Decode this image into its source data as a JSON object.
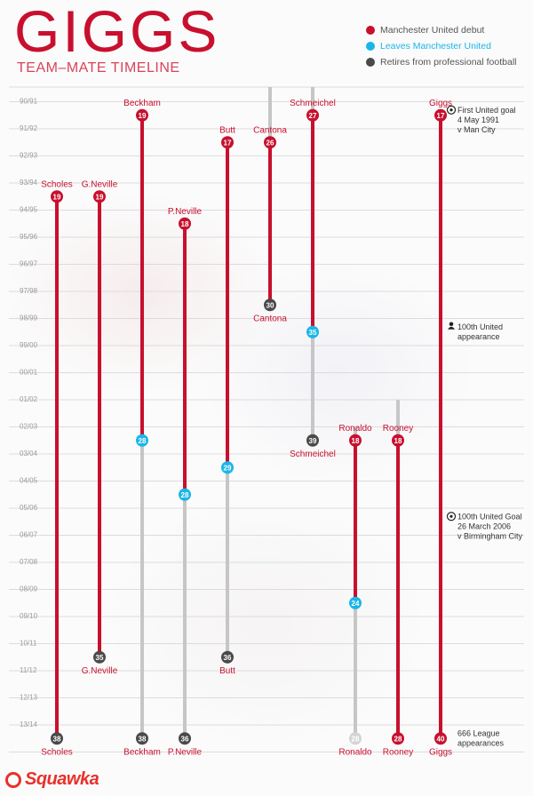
{
  "title": "GIGGS",
  "subtitle": "TEAM–MATE TIMELINE",
  "colors": {
    "debut": "#c8102e",
    "leaves": "#19b6e9",
    "retires": "#4a4a4a",
    "line_red": "#c8102e",
    "line_grey": "#c6c6c6",
    "grid": "#dcdcdc",
    "season_label": "#9a9a9a"
  },
  "legend": [
    {
      "label": "Manchester United debut",
      "color": "#c8102e",
      "text_color": "#555555"
    },
    {
      "label": "Leaves Manchester United",
      "color": "#19b6e9",
      "text_color": "#19b6e9"
    },
    {
      "label": "Retires from professional football",
      "color": "#4a4a4a",
      "text_color": "#555555"
    }
  ],
  "chart_data": {
    "type": "timeline",
    "seasons": [
      "90/91",
      "91/92",
      "92/93",
      "93/94",
      "94/95",
      "95/96",
      "96/97",
      "97/98",
      "98/99",
      "99/00",
      "00/01",
      "01/02",
      "02/03",
      "03/04",
      "04/05",
      "05/06",
      "06/07",
      "07/08",
      "08/09",
      "09/10",
      "10/11",
      "11/12",
      "12/13",
      "13/14"
    ],
    "players": [
      {
        "name": "Scholes",
        "debut_season": "93/94",
        "debut_age": 19,
        "leave_season": null,
        "leave_age": null,
        "retire_season": "13/14",
        "retire_age": 38,
        "label_top": "Scholes",
        "label_bottom": "Scholes"
      },
      {
        "name": "G.Neville",
        "debut_season": "93/94",
        "debut_age": 19,
        "leave_season": null,
        "leave_age": null,
        "retire_season": "10/11",
        "retire_age": 35,
        "label_top": "G.Neville",
        "label_bottom": "G.Neville"
      },
      {
        "name": "Beckham",
        "debut_season": "90/91",
        "debut_age": 19,
        "leave_season": "02/03",
        "leave_age": 28,
        "retire_season": "13/14",
        "retire_age": 38,
        "label_top": "Beckham",
        "label_bottom": "Beckham"
      },
      {
        "name": "P.Neville",
        "debut_season": "94/95",
        "debut_age": 18,
        "leave_season": "04/05",
        "leave_age": 28,
        "retire_season": "13/14",
        "retire_age": 36,
        "label_top": "P.Neville",
        "label_bottom": "P.Neville"
      },
      {
        "name": "Butt",
        "debut_season": "91/92",
        "debut_age": 17,
        "leave_season": "03/04",
        "leave_age": 29,
        "retire_season": "10/11",
        "retire_age": 36,
        "label_top": "Butt",
        "label_bottom": "Butt"
      },
      {
        "name": "Cantona",
        "debut_season": "91/92",
        "debut_age": 26,
        "leave_season": null,
        "leave_age": null,
        "retire_season": "97/98",
        "retire_age": 30,
        "label_top": "Cantona",
        "label_bottom": "Cantona"
      },
      {
        "name": "Schmeichel",
        "debut_season": "90/91",
        "debut_age": 27,
        "leave_season": "98/99",
        "leave_age": 35,
        "retire_season": "02/03",
        "retire_age": 39,
        "label_top": "Schmeichel",
        "label_bottom": "Schmeichel"
      },
      {
        "name": "Ronaldo",
        "debut_season": "02/03",
        "debut_age": 18,
        "leave_season": "08/09",
        "leave_age": 24,
        "retire_season": "13/14",
        "retire_age": 28,
        "label_top": "Ronaldo",
        "label_bottom": "Ronaldo"
      },
      {
        "name": "Rooney",
        "debut_season": "02/03",
        "debut_age": 18,
        "leave_season": null,
        "leave_age": null,
        "retire_season": "13/14",
        "retire_age": 28,
        "label_top": "Rooney",
        "label_bottom": "Rooney"
      },
      {
        "name": "Giggs",
        "debut_season": "90/91",
        "debut_age": 17,
        "leave_season": null,
        "leave_age": null,
        "retire_season": "13/14",
        "retire_age": 40,
        "label_top": "Giggs",
        "label_bottom": "Giggs"
      }
    ],
    "annotations": [
      {
        "season": "90/91",
        "icon": "football-icon",
        "lines": [
          "First United goal",
          "4 May 1991",
          "v Man City"
        ]
      },
      {
        "season": "98/99",
        "icon": "person-icon",
        "lines": [
          "100th United",
          "appearance"
        ]
      },
      {
        "season": "05/06",
        "icon": "football-icon",
        "lines": [
          "100th United Goal",
          "26 March 2006",
          "v Birmingham City"
        ]
      },
      {
        "season": "13/14",
        "icon": "",
        "lines": [
          "666 League",
          "appearances"
        ]
      }
    ]
  },
  "footer": {
    "brand": "Squawka"
  }
}
